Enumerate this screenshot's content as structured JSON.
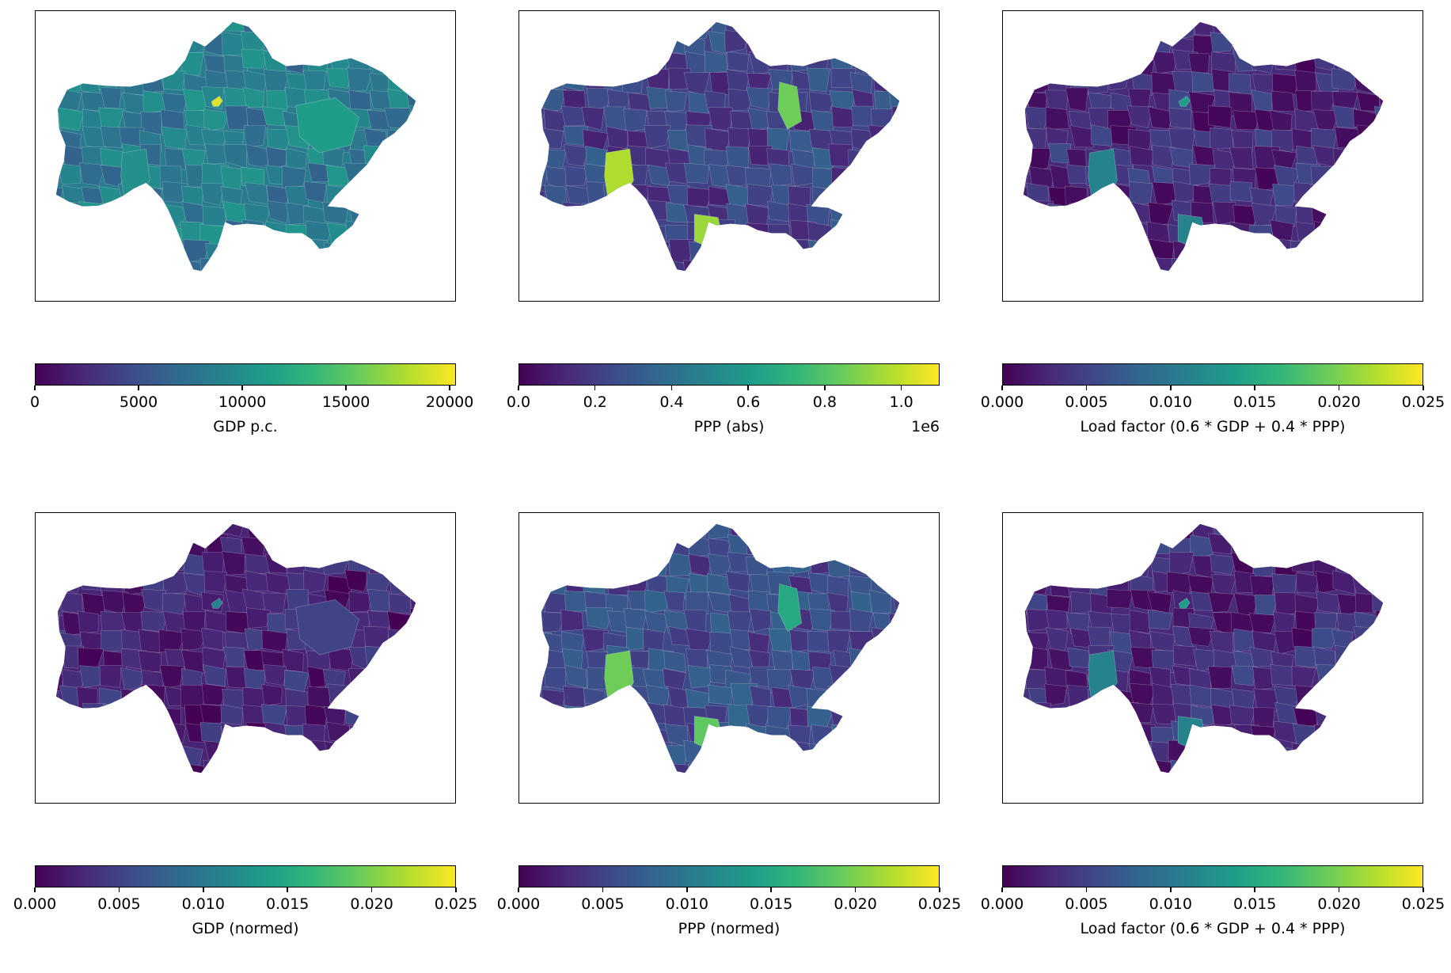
{
  "colormap": "viridis",
  "panels": [
    {
      "id": "gdp-pc",
      "label": "GDP p.c.",
      "ticks": [
        "0",
        "5000",
        "10000",
        "15000",
        "20000"
      ],
      "tick_values": [
        0,
        5000,
        10000,
        15000,
        20000
      ],
      "range": [
        0,
        20300
      ],
      "offset_text": "",
      "fill_level": 0.42,
      "highlights": [
        {
          "region": "central-enclave",
          "level": 0.95
        },
        {
          "region": "east",
          "level": 0.55
        },
        {
          "region": "south-west",
          "level": 0.5
        }
      ]
    },
    {
      "id": "ppp-abs",
      "label": "PPP (abs)",
      "ticks": [
        "0.0",
        "0.2",
        "0.4",
        "0.6",
        "0.8",
        "1.0"
      ],
      "tick_values": [
        0,
        0.2,
        0.4,
        0.6,
        0.8,
        1.0
      ],
      "range": [
        0,
        1.1
      ],
      "offset_text": "1e6",
      "fill_level": 0.2,
      "highlights": [
        {
          "region": "south-west",
          "level": 0.88
        },
        {
          "region": "south",
          "level": 0.85
        },
        {
          "region": "north-east",
          "level": 0.78
        }
      ]
    },
    {
      "id": "load-top",
      "label": "Load factor (0.6 * GDP + 0.4 * PPP)",
      "ticks": [
        "0.000",
        "0.005",
        "0.010",
        "0.015",
        "0.020",
        "0.025"
      ],
      "tick_values": [
        0,
        0.005,
        0.01,
        0.015,
        0.02,
        0.025
      ],
      "range": [
        0,
        0.025
      ],
      "offset_text": "",
      "fill_level": 0.12,
      "highlights": [
        {
          "region": "south-west",
          "level": 0.45
        },
        {
          "region": "south",
          "level": 0.45
        },
        {
          "region": "central-enclave",
          "level": 0.55
        }
      ]
    },
    {
      "id": "gdp-normed",
      "label": "GDP (normed)",
      "ticks": [
        "0.000",
        "0.005",
        "0.010",
        "0.015",
        "0.020",
        "0.025"
      ],
      "tick_values": [
        0,
        0.005,
        0.01,
        0.015,
        0.02,
        0.025
      ],
      "range": [
        0,
        0.025
      ],
      "offset_text": "",
      "fill_level": 0.1,
      "highlights": [
        {
          "region": "central-enclave",
          "level": 0.45
        },
        {
          "region": "east",
          "level": 0.2
        }
      ]
    },
    {
      "id": "ppp-normed",
      "label": "PPP (normed)",
      "ticks": [
        "0.000",
        "0.005",
        "0.010",
        "0.015",
        "0.020",
        "0.025"
      ],
      "tick_values": [
        0,
        0.005,
        0.01,
        0.015,
        0.02,
        0.025
      ],
      "range": [
        0,
        0.025
      ],
      "offset_text": "",
      "fill_level": 0.22,
      "highlights": [
        {
          "region": "south-west",
          "level": 0.78
        },
        {
          "region": "south",
          "level": 0.75
        },
        {
          "region": "north-east",
          "level": 0.6
        }
      ]
    },
    {
      "id": "load-bottom",
      "label": "Load factor (0.6 * GDP + 0.4 * PPP)",
      "ticks": [
        "0.000",
        "0.005",
        "0.010",
        "0.015",
        "0.020",
        "0.025"
      ],
      "tick_values": [
        0,
        0.005,
        0.01,
        0.015,
        0.02,
        0.025
      ],
      "range": [
        0,
        0.025
      ],
      "offset_text": "",
      "fill_level": 0.12,
      "highlights": [
        {
          "region": "south-west",
          "level": 0.45
        },
        {
          "region": "south",
          "level": 0.45
        },
        {
          "region": "central-enclave",
          "level": 0.55
        }
      ]
    }
  ]
}
